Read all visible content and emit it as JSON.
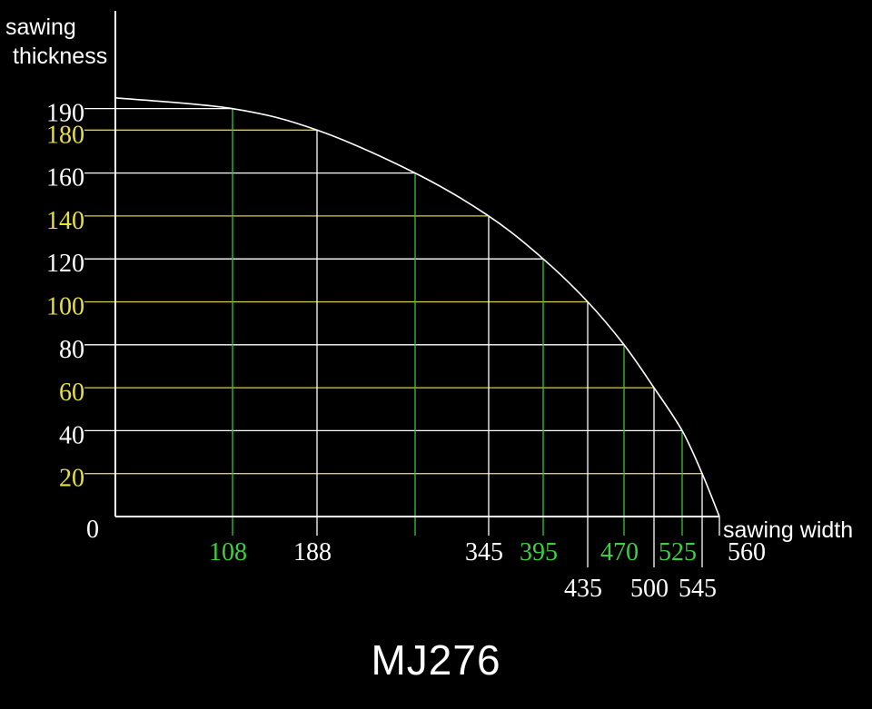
{
  "chart_data": {
    "type": "line",
    "title": "MJ276",
    "ylabel_line1": "sawing",
    "ylabel_line2": "thickness",
    "xlabel": "sawing width",
    "origin_label": "0",
    "xlim": [
      0,
      560
    ],
    "ylim": [
      0,
      190
    ],
    "grid": true,
    "y_ticks": [
      {
        "value": 190,
        "label": "190",
        "color": "#ffffff"
      },
      {
        "value": 180,
        "label": "180",
        "color": "#e8e040"
      },
      {
        "value": 160,
        "label": "160",
        "color": "#ffffff"
      },
      {
        "value": 140,
        "label": "140",
        "color": "#e8e040"
      },
      {
        "value": 120,
        "label": "120",
        "color": "#ffffff"
      },
      {
        "value": 100,
        "label": "100",
        "color": "#e8e040"
      },
      {
        "value": 80,
        "label": "80",
        "color": "#ffffff"
      },
      {
        "value": 60,
        "label": "60",
        "color": "#e8e040"
      },
      {
        "value": 40,
        "label": "40",
        "color": "#ffffff"
      },
      {
        "value": 20,
        "label": "20",
        "color": "#e8e040"
      }
    ],
    "x_ticks": [
      {
        "value": 108,
        "label": "108",
        "color": "#3fcf3f",
        "row": 1
      },
      {
        "value": 188,
        "label": "188",
        "color": "#ffffff",
        "row": 1
      },
      {
        "value": 270,
        "label": "",
        "color": "#3fcf3f",
        "row": 1
      },
      {
        "value": 345,
        "label": "345",
        "color": "#ffffff",
        "row": 1
      },
      {
        "value": 395,
        "label": "395",
        "color": "#3fcf3f",
        "row": 1
      },
      {
        "value": 435,
        "label": "435",
        "color": "#ffffff",
        "row": 2
      },
      {
        "value": 470,
        "label": "470",
        "color": "#3fcf3f",
        "row": 1
      },
      {
        "value": 500,
        "label": "500",
        "color": "#ffffff",
        "row": 2
      },
      {
        "value": 525,
        "label": "525",
        "color": "#3fcf3f",
        "row": 1
      },
      {
        "value": 545,
        "label": "545",
        "color": "#ffffff",
        "row": 2
      },
      {
        "value": 560,
        "label": "560",
        "color": "#ffffff",
        "row": 1
      }
    ],
    "series": [
      {
        "x": [
          0,
          108,
          188,
          270,
          345,
          395,
          435,
          470,
          500,
          525,
          545,
          560
        ],
        "y": [
          195,
          190,
          180,
          160,
          140,
          120,
          100,
          80,
          60,
          40,
          20,
          0
        ]
      }
    ],
    "colors": {
      "axis": "#ffffff",
      "curve": "#ffffff",
      "white_grid": "#ffffff",
      "yellow_grid": "#d8d040",
      "green_grid": "#36c436"
    }
  }
}
